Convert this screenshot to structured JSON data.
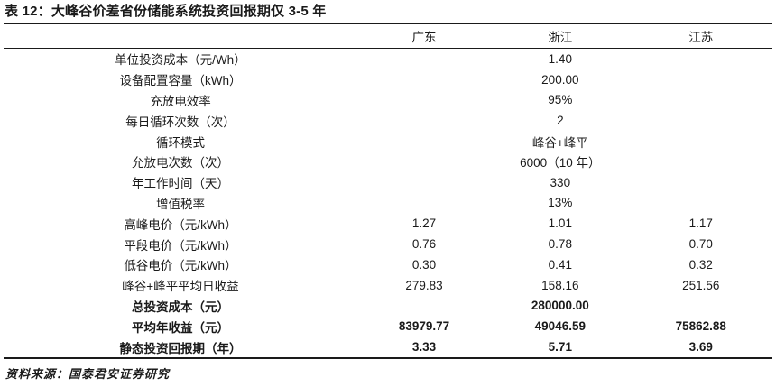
{
  "title": "表 12：大峰谷价差省份储能系统投资回报期仅 3-5 年",
  "source": "资料来源：国泰君安证券研究",
  "colors": {
    "text": "#1a1a1a",
    "rule": "#1a1a1a",
    "background": "#ffffff"
  },
  "table": {
    "columns": [
      "广东",
      "浙江",
      "江苏"
    ],
    "rows": [
      {
        "label": "单位投资成本（元/Wh）",
        "values": [
          "",
          "1.40",
          ""
        ],
        "bold": false
      },
      {
        "label": "设备配置容量（kWh）",
        "values": [
          "",
          "200.00",
          ""
        ],
        "bold": false
      },
      {
        "label": "充放电效率",
        "values": [
          "",
          "95%",
          ""
        ],
        "bold": false
      },
      {
        "label": "每日循环次数（次）",
        "values": [
          "",
          "2",
          ""
        ],
        "bold": false
      },
      {
        "label": "循环模式",
        "values": [
          "",
          "峰谷+峰平",
          ""
        ],
        "bold": false
      },
      {
        "label": "允放电次数（次）",
        "values": [
          "",
          "6000（10 年）",
          ""
        ],
        "bold": false
      },
      {
        "label": "年工作时间（天）",
        "values": [
          "",
          "330",
          ""
        ],
        "bold": false
      },
      {
        "label": "增值税率",
        "values": [
          "",
          "13%",
          ""
        ],
        "bold": false
      },
      {
        "label": "高峰电价（元/kWh）",
        "values": [
          "1.27",
          "1.01",
          "1.17"
        ],
        "bold": false
      },
      {
        "label": "平段电价（元/kWh）",
        "values": [
          "0.76",
          "0.78",
          "0.70"
        ],
        "bold": false
      },
      {
        "label": "低谷电价（元/kWh）",
        "values": [
          "0.30",
          "0.41",
          "0.32"
        ],
        "bold": false
      },
      {
        "label": "峰谷+峰平平均日收益",
        "values": [
          "279.83",
          "158.16",
          "251.56"
        ],
        "bold": false
      },
      {
        "label": "总投资成本（元）",
        "values": [
          "",
          "280000.00",
          ""
        ],
        "bold": true
      },
      {
        "label": "平均年收益（元）",
        "values": [
          "83979.77",
          "49046.59",
          "75862.88"
        ],
        "bold": true
      },
      {
        "label": "静态投资回报期（年）",
        "values": [
          "3.33",
          "5.71",
          "3.69"
        ],
        "bold": true
      }
    ]
  }
}
